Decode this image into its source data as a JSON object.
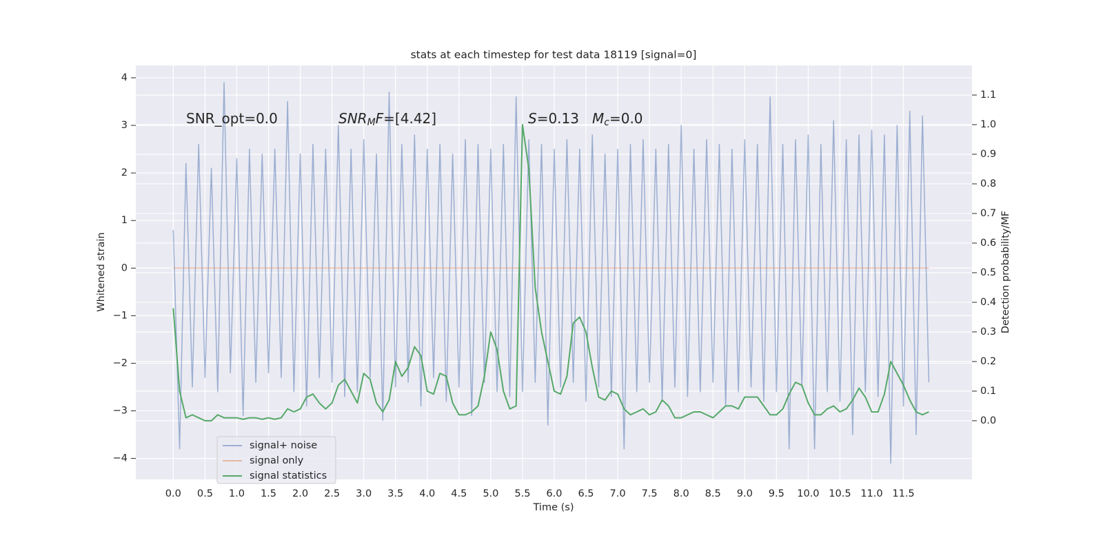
{
  "chart_data": {
    "type": "line",
    "title": "stats at each timestep for test data 18119 [signal=0]",
    "x_label": "Time (s)",
    "y_label": "Whitened strain",
    "y2_label": "Detection probability/MF",
    "x": [
      0.0,
      0.1,
      0.2,
      0.3,
      0.4,
      0.5,
      0.6,
      0.7,
      0.8,
      0.9,
      1.0,
      1.1,
      1.2,
      1.3,
      1.4,
      1.5,
      1.6,
      1.7,
      1.8,
      1.9,
      2.0,
      2.1,
      2.2,
      2.3,
      2.4,
      2.5,
      2.6,
      2.7,
      2.8,
      2.9,
      3.0,
      3.1,
      3.2,
      3.3,
      3.4,
      3.5,
      3.6,
      3.7,
      3.8,
      3.9,
      4.0,
      4.1,
      4.2,
      4.3,
      4.4,
      4.5,
      4.6,
      4.7,
      4.8,
      4.9,
      5.0,
      5.1,
      5.2,
      5.3,
      5.4,
      5.5,
      5.6,
      5.7,
      5.8,
      5.9,
      6.0,
      6.1,
      6.2,
      6.3,
      6.4,
      6.5,
      6.6,
      6.7,
      6.8,
      6.9,
      7.0,
      7.1,
      7.2,
      7.3,
      7.4,
      7.5,
      7.6,
      7.7,
      7.8,
      7.9,
      8.0,
      8.1,
      8.2,
      8.3,
      8.4,
      8.5,
      8.6,
      8.7,
      8.8,
      8.9,
      9.0,
      9.1,
      9.2,
      9.3,
      9.4,
      9.5,
      9.6,
      9.7,
      9.8,
      9.9,
      10.0,
      10.1,
      10.2,
      10.3,
      10.4,
      10.5,
      10.6,
      10.7,
      10.8,
      10.9,
      11.0,
      11.1,
      11.2,
      11.3,
      11.4,
      11.5,
      11.6,
      11.7,
      11.8,
      11.9
    ],
    "series": [
      {
        "name": "signal+ noise",
        "color": "#4c72b0",
        "alpha": 0.5,
        "values": [
          0.8,
          -3.8,
          2.2,
          -2.5,
          2.6,
          -2.3,
          2.1,
          -2.6,
          3.9,
          -2.2,
          2.3,
          -3.1,
          2.5,
          -2.4,
          2.4,
          -2.2,
          2.5,
          -2.3,
          3.5,
          -2.6,
          2.4,
          -2.9,
          2.6,
          -2.3,
          2.5,
          -2.4,
          3.0,
          -2.7,
          2.5,
          -2.6,
          2.7,
          -2.3,
          2.4,
          -3.2,
          3.7,
          -2.5,
          2.6,
          -2.4,
          2.8,
          -2.9,
          2.5,
          -2.3,
          2.6,
          -2.8,
          2.4,
          -2.5,
          2.7,
          -3.1,
          2.6,
          -2.4,
          2.5,
          -2.6,
          2.6,
          -2.7,
          3.6,
          -2.6,
          2.7,
          -2.4,
          2.6,
          -3.3,
          2.5,
          -2.5,
          2.7,
          -2.4,
          2.5,
          -2.8,
          2.8,
          -2.5,
          2.4,
          -2.7,
          2.5,
          -3.8,
          2.6,
          -2.6,
          2.7,
          -2.4,
          2.5,
          -2.8,
          2.6,
          -2.5,
          3.0,
          -2.7,
          2.5,
          -2.6,
          2.7,
          -2.4,
          2.6,
          -2.9,
          2.5,
          -2.6,
          2.7,
          -2.5,
          2.6,
          -2.8,
          3.6,
          -2.6,
          2.6,
          -3.8,
          2.7,
          -2.5,
          2.8,
          -3.8,
          2.6,
          -2.6,
          3.1,
          -2.8,
          2.7,
          -3.5,
          2.8,
          -2.6,
          2.9,
          -2.7,
          2.8,
          -4.1,
          3.0,
          -2.9,
          3.3,
          -3.5,
          3.2,
          -2.4
        ]
      },
      {
        "name": "signal only",
        "color": "#dd8452",
        "alpha": 0.5,
        "x": [
          0.0,
          11.9
        ],
        "values": [
          0,
          0
        ]
      },
      {
        "name": "signal statistics",
        "color": "#55a868",
        "alpha": 1,
        "axis": "y2",
        "values": [
          0.38,
          0.1,
          0.01,
          0.02,
          0.01,
          0.0,
          0.0,
          0.02,
          0.01,
          0.01,
          0.01,
          0.005,
          0.01,
          0.01,
          0.005,
          0.01,
          0.005,
          0.01,
          0.04,
          0.03,
          0.04,
          0.08,
          0.09,
          0.06,
          0.04,
          0.06,
          0.12,
          0.14,
          0.1,
          0.06,
          0.16,
          0.14,
          0.06,
          0.03,
          0.07,
          0.2,
          0.15,
          0.18,
          0.25,
          0.22,
          0.1,
          0.09,
          0.16,
          0.15,
          0.06,
          0.02,
          0.02,
          0.03,
          0.05,
          0.15,
          0.3,
          0.24,
          0.1,
          0.04,
          0.05,
          1.0,
          0.85,
          0.45,
          0.3,
          0.2,
          0.1,
          0.09,
          0.15,
          0.33,
          0.35,
          0.3,
          0.18,
          0.08,
          0.07,
          0.1,
          0.09,
          0.04,
          0.02,
          0.03,
          0.04,
          0.02,
          0.03,
          0.07,
          0.05,
          0.01,
          0.01,
          0.02,
          0.03,
          0.03,
          0.02,
          0.01,
          0.03,
          0.05,
          0.05,
          0.04,
          0.08,
          0.08,
          0.08,
          0.05,
          0.02,
          0.02,
          0.04,
          0.09,
          0.13,
          0.12,
          0.06,
          0.02,
          0.02,
          0.04,
          0.05,
          0.03,
          0.04,
          0.07,
          0.11,
          0.08,
          0.03,
          0.03,
          0.09,
          0.2,
          0.16,
          0.12,
          0.07,
          0.03,
          0.02,
          0.03
        ]
      }
    ],
    "annotations": [
      [
        {
          "text": "SNR_opt=0.0"
        }
      ],
      [
        {
          "text": "SNR",
          "italic": true
        },
        {
          "text": "M",
          "italic": true,
          "sub": true
        },
        {
          "text": "F",
          "italic": true
        },
        {
          "text": "=[4.42]"
        }
      ],
      [
        {
          "text": "S",
          "italic": true
        },
        {
          "text": "=0.13"
        }
      ],
      [
        {
          "text": "M",
          "italic": true
        },
        {
          "text": "c",
          "italic": true,
          "sub": true
        },
        {
          "text": "=0.0"
        }
      ]
    ],
    "xlim": [
      -0.59,
      12.58
    ],
    "ylim": [
      -4.44,
      4.26
    ],
    "y2lim": [
      -0.198,
      1.2
    ],
    "xticks": [
      {
        "value": 0,
        "label": "0.0"
      },
      {
        "value": 0.5,
        "label": "0.5"
      },
      {
        "value": 1,
        "label": "1.0"
      },
      {
        "value": 1.5,
        "label": "1.5"
      },
      {
        "value": 2,
        "label": "2.0"
      },
      {
        "value": 2.5,
        "label": "2.5"
      },
      {
        "value": 3,
        "label": "3.0"
      },
      {
        "value": 3.5,
        "label": "3.5"
      },
      {
        "value": 4,
        "label": "4.0"
      },
      {
        "value": 4.5,
        "label": "4.5"
      },
      {
        "value": 5,
        "label": "5.0"
      },
      {
        "value": 5.5,
        "label": "5.5"
      },
      {
        "value": 6,
        "label": "6.0"
      },
      {
        "value": 6.5,
        "label": "6.5"
      },
      {
        "value": 7,
        "label": "7.0"
      },
      {
        "value": 7.5,
        "label": "7.5"
      },
      {
        "value": 8,
        "label": "8.0"
      },
      {
        "value": 8.5,
        "label": "8.5"
      },
      {
        "value": 9,
        "label": "9.0"
      },
      {
        "value": 9.5,
        "label": "9.5"
      },
      {
        "value": 10,
        "label": "10.0"
      },
      {
        "value": 10.5,
        "label": "10.5"
      },
      {
        "value": 11,
        "label": "11.0"
      },
      {
        "value": 11.5,
        "label": "11.5"
      }
    ],
    "yticks": [
      {
        "value": -4,
        "label": "−4"
      },
      {
        "value": -3,
        "label": "−3"
      },
      {
        "value": -2,
        "label": "−2"
      },
      {
        "value": -1,
        "label": "−1"
      },
      0,
      1,
      2,
      3,
      4
    ],
    "y2ticks": [
      {
        "value": 0,
        "label": "0.0"
      },
      {
        "value": 0.1,
        "label": "0.1"
      },
      {
        "value": 0.2,
        "label": "0.2"
      },
      {
        "value": 0.3,
        "label": "0.3"
      },
      {
        "value": 0.4,
        "label": "0.4"
      },
      {
        "value": 0.5,
        "label": "0.5"
      },
      {
        "value": 0.6,
        "label": "0.6"
      },
      {
        "value": 0.7,
        "label": "0.7"
      },
      {
        "value": 0.8,
        "label": "0.8"
      },
      {
        "value": 0.9,
        "label": "0.9"
      },
      {
        "value": 1,
        "label": "1.0"
      },
      {
        "value": 1.1,
        "label": "1.1"
      }
    ],
    "grid": true,
    "legend": "lower left"
  }
}
